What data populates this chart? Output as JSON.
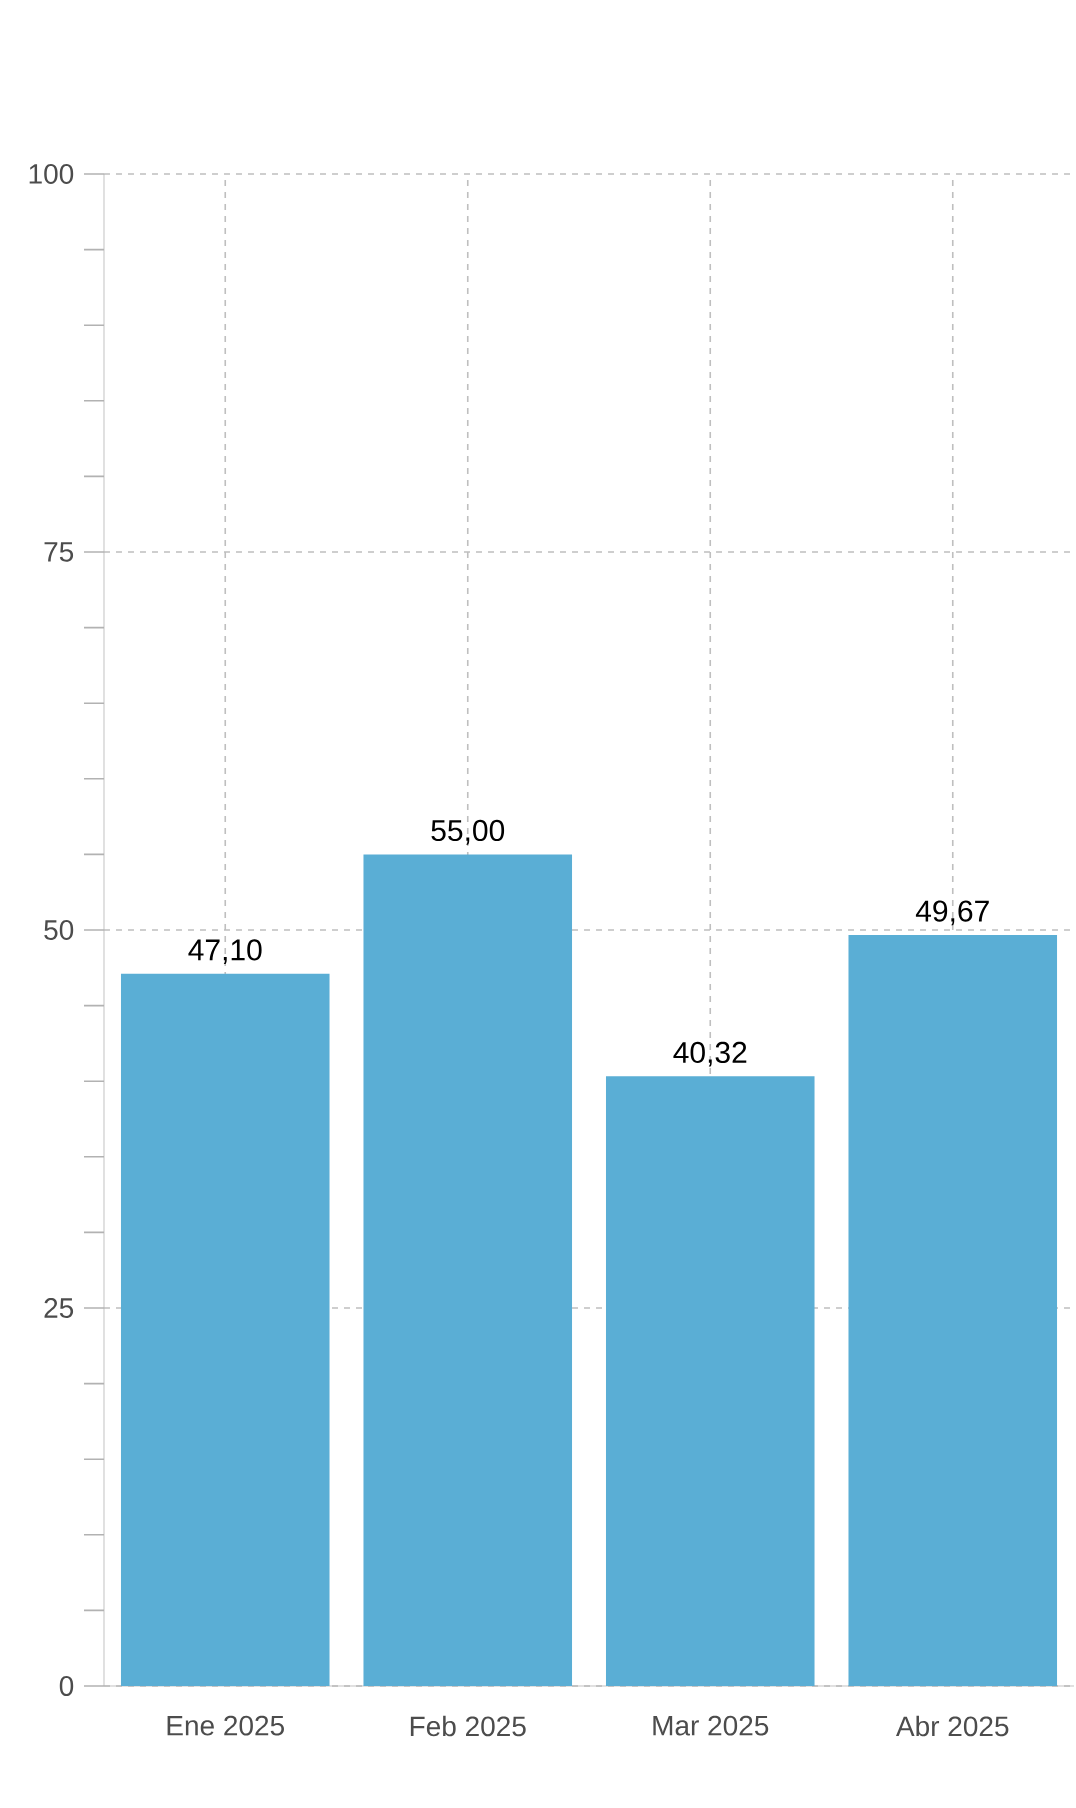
{
  "chart_data": {
    "type": "bar",
    "categories": [
      "Ene 2025",
      "Feb 2025",
      "Mar 2025",
      "Abr 2025"
    ],
    "values": [
      47.1,
      55.0,
      40.32,
      49.67
    ],
    "value_labels": [
      "47,10",
      "55,00",
      "40,32",
      "49,67"
    ],
    "color": "#5aaed5",
    "ylim": [
      0,
      100
    ],
    "yticks": [
      0,
      {
        "value": 5,
        "label": null
      },
      {
        "value": 10,
        "label": null
      },
      {
        "value": 15,
        "label": null
      },
      {
        "value": 20,
        "label": null
      },
      25,
      {
        "value": 30,
        "label": null
      },
      {
        "value": 35,
        "label": null
      },
      {
        "value": 40,
        "label": null
      },
      {
        "value": 45,
        "label": null
      },
      50,
      {
        "value": 55,
        "label": null
      },
      {
        "value": 60,
        "label": null
      },
      {
        "value": 65,
        "label": null
      },
      {
        "value": 70,
        "label": null
      },
      75,
      {
        "value": 80,
        "label": null
      },
      {
        "value": 85,
        "label": null
      },
      {
        "value": 90,
        "label": null
      },
      {
        "value": 95,
        "label": null
      },
      100
    ],
    "grid": true
  }
}
